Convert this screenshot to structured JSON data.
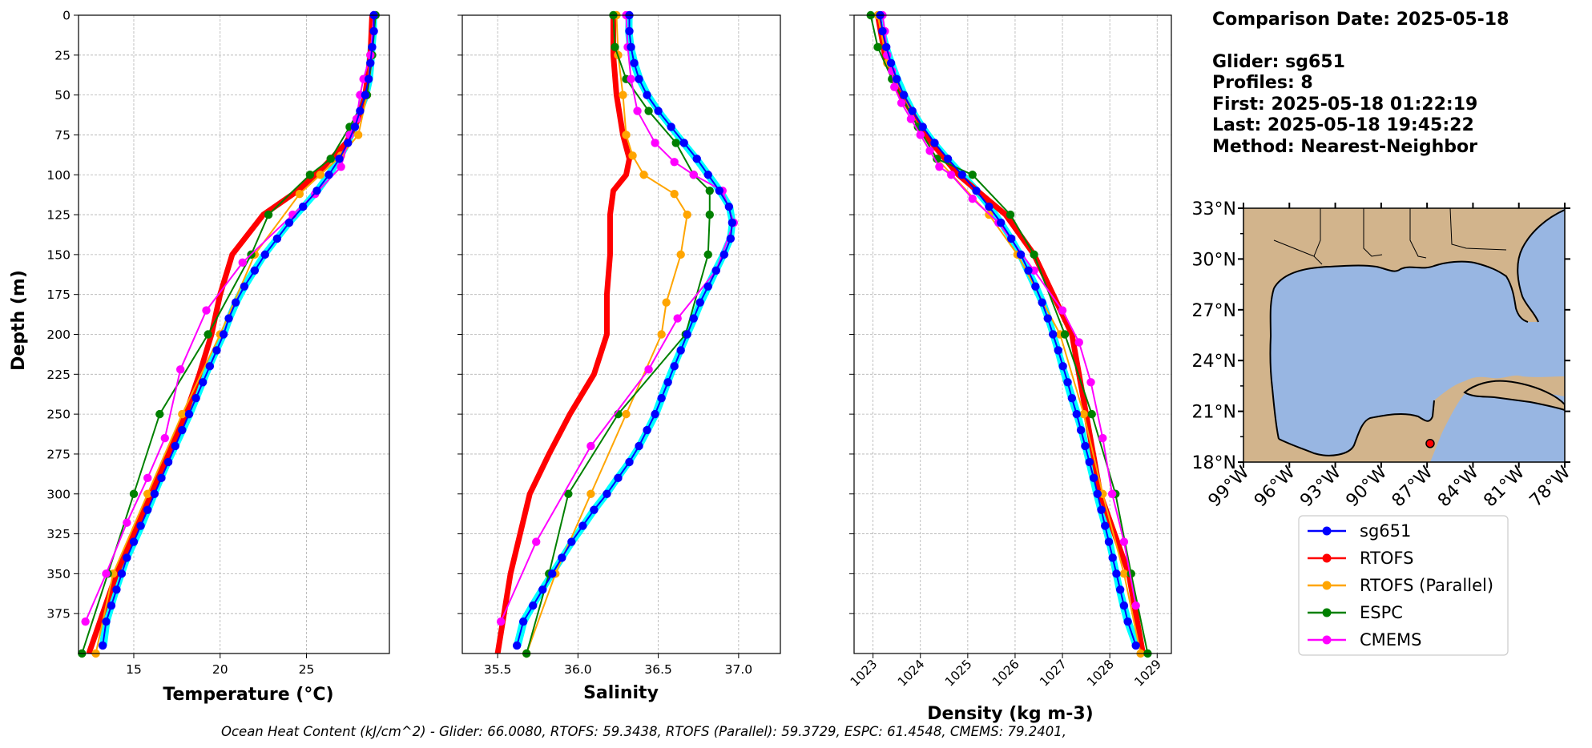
{
  "info": {
    "comparison_date": "Comparison Date: 2025-05-18",
    "glider": "Glider: sg651",
    "profiles": "Profiles: 8",
    "first": "First: 2025-05-18 01:22:19",
    "last": "Last: 2025-05-18 19:45:22",
    "method": "Method: Nearest-Neighbor"
  },
  "footer_text": "Ocean Heat Content (kJ/cm^2) - Glider: 66.0080,  RTOFS: 59.3438,  RTOFS (Parallel): 59.3729,  ESPC: 61.4548,  CMEMS: 79.2401,",
  "colors": {
    "sg651": "#0000ff",
    "sg651_profiles": "#00ffff",
    "RTOFS": "#ff0000",
    "RTOFS (Parallel)": "#ffa500",
    "ESPC": "#008000",
    "CMEMS": "#ff00ff",
    "land": "#d2b48c",
    "ocean": "#98b6e2"
  },
  "chart_data": [
    {
      "type": "line",
      "xlabel": "Temperature (°C)",
      "ylabel": "Depth (m)",
      "xlim": [
        11.8,
        29.8
      ],
      "ylim": [
        400,
        0
      ],
      "xticks": [
        15,
        20,
        25
      ],
      "yticks": [
        0,
        25,
        50,
        75,
        100,
        125,
        150,
        175,
        200,
        225,
        250,
        275,
        300,
        325,
        350,
        375
      ],
      "grid": true,
      "series": [
        {
          "name": "sg651",
          "marker": true,
          "x": [
            28.9,
            28.9,
            28.8,
            28.7,
            28.6,
            28.4,
            28.1,
            27.8,
            27.4,
            26.9,
            26.3,
            25.6,
            24.8,
            24.0,
            23.3,
            22.6,
            22.0,
            21.4,
            20.9,
            20.5,
            20.2,
            19.8,
            19.4,
            19.0,
            18.6,
            18.2,
            17.8,
            17.4,
            17.0,
            16.6,
            16.2,
            15.8,
            15.4,
            15.0,
            14.6,
            14.3,
            14.0,
            13.7,
            13.4,
            13.2
          ],
          "depth": [
            0,
            10,
            20,
            30,
            40,
            50,
            60,
            70,
            80,
            90,
            100,
            110,
            120,
            130,
            140,
            150,
            160,
            170,
            180,
            190,
            200,
            210,
            220,
            230,
            240,
            250,
            260,
            270,
            280,
            290,
            300,
            310,
            320,
            330,
            340,
            350,
            360,
            370,
            380,
            395
          ]
        },
        {
          "name": "RTOFS",
          "marker": false,
          "x": [
            28.8,
            28.7,
            28.4,
            28.0,
            27.3,
            26.0,
            24.5,
            22.5,
            20.7,
            20.0,
            19.5,
            18.8,
            18.0,
            17.0,
            16.0,
            15.0,
            14.0,
            13.2,
            12.4
          ],
          "depth": [
            0,
            25,
            50,
            65,
            80,
            95,
            110,
            125,
            150,
            175,
            200,
            225,
            250,
            275,
            300,
            325,
            350,
            375,
            400
          ]
        },
        {
          "name": "RTOFS (Parallel)",
          "marker": true,
          "x": [
            28.9,
            28.7,
            28.5,
            28.0,
            27.0,
            25.8,
            24.6,
            22.0,
            20.0,
            17.8,
            15.8,
            13.8,
            12.8
          ],
          "depth": [
            0,
            25,
            50,
            75,
            88,
            100,
            112,
            150,
            200,
            250,
            300,
            350,
            400
          ]
        },
        {
          "name": "ESPC",
          "marker": true,
          "x": [
            29.0,
            28.8,
            28.5,
            27.5,
            26.4,
            25.2,
            22.8,
            21.8,
            19.3,
            16.5,
            15.0,
            13.5,
            12.0
          ],
          "depth": [
            0,
            25,
            50,
            70,
            90,
            100,
            125,
            150,
            200,
            250,
            300,
            350,
            400
          ]
        },
        {
          "name": "CMEMS",
          "marker": true,
          "x": [
            28.9,
            28.7,
            28.3,
            28.1,
            27.9,
            27.5,
            27.0,
            25.5,
            24.2,
            21.3,
            19.2,
            17.7,
            16.8,
            15.8,
            14.6,
            13.4,
            12.2
          ],
          "depth": [
            0,
            25,
            40,
            50,
            65,
            75,
            95,
            112,
            125,
            155,
            185,
            222,
            265,
            290,
            318,
            350,
            380
          ]
        }
      ]
    },
    {
      "type": "line",
      "xlabel": "Salinity",
      "xlim": [
        35.28,
        37.26
      ],
      "ylim": [
        400,
        0
      ],
      "xticks": [
        35.5,
        36.0,
        36.5,
        37.0
      ],
      "xtick_labels": [
        "35.5",
        "36.0",
        "36.5",
        "37.0"
      ],
      "grid": true,
      "series": [
        {
          "name": "sg651",
          "marker": true,
          "x": [
            36.32,
            36.32,
            36.33,
            36.35,
            36.38,
            36.43,
            36.5,
            36.58,
            36.66,
            36.74,
            36.81,
            36.88,
            36.94,
            36.96,
            36.95,
            36.91,
            36.86,
            36.81,
            36.76,
            36.72,
            36.68,
            36.64,
            36.6,
            36.56,
            36.52,
            36.48,
            36.43,
            36.38,
            36.32,
            36.25,
            36.18,
            36.1,
            36.03,
            35.96,
            35.9,
            35.84,
            35.78,
            35.72,
            35.66,
            35.62
          ],
          "depth": [
            0,
            10,
            20,
            30,
            40,
            50,
            60,
            70,
            80,
            90,
            100,
            110,
            120,
            130,
            140,
            150,
            160,
            170,
            180,
            190,
            200,
            210,
            220,
            230,
            240,
            250,
            260,
            270,
            280,
            290,
            300,
            310,
            320,
            330,
            340,
            350,
            360,
            370,
            380,
            395
          ]
        },
        {
          "name": "RTOFS",
          "marker": false,
          "x": [
            36.22,
            36.22,
            36.24,
            36.28,
            36.32,
            36.3,
            36.22,
            36.2,
            36.2,
            36.18,
            36.18,
            36.1,
            35.95,
            35.82,
            35.7,
            35.58,
            35.5
          ],
          "depth": [
            0,
            25,
            50,
            75,
            90,
            100,
            110,
            125,
            150,
            175,
            200,
            225,
            250,
            275,
            300,
            350,
            400
          ]
        },
        {
          "name": "RTOFS (Parallel)",
          "marker": true,
          "x": [
            36.24,
            36.25,
            36.28,
            36.3,
            36.34,
            36.41,
            36.6,
            36.68,
            36.64,
            36.55,
            36.52,
            36.3,
            36.08,
            35.86,
            35.68
          ],
          "depth": [
            0,
            25,
            50,
            75,
            88,
            100,
            112,
            125,
            150,
            180,
            200,
            250,
            300,
            350,
            400
          ]
        },
        {
          "name": "ESPC",
          "marker": true,
          "x": [
            36.22,
            36.23,
            36.3,
            36.44,
            36.61,
            36.72,
            36.82,
            36.82,
            36.81,
            36.67,
            36.25,
            35.94,
            35.82,
            35.68
          ],
          "depth": [
            0,
            20,
            40,
            60,
            80,
            100,
            110,
            125,
            150,
            200,
            250,
            300,
            350,
            400
          ]
        },
        {
          "name": "CMEMS",
          "marker": true,
          "x": [
            36.3,
            36.31,
            36.33,
            36.37,
            36.48,
            36.6,
            36.72,
            36.9,
            36.97,
            36.86,
            36.62,
            36.44,
            36.08,
            35.74,
            35.52
          ],
          "depth": [
            0,
            20,
            40,
            60,
            80,
            92,
            100,
            110,
            130,
            160,
            190,
            222,
            270,
            330,
            380
          ]
        }
      ]
    },
    {
      "type": "line",
      "xlabel": "Density (kg m-3)",
      "xlim": [
        1022.6,
        1029.3
      ],
      "ylim": [
        400,
        0
      ],
      "xticks": [
        1023,
        1024,
        1025,
        1026,
        1027,
        1028,
        1029
      ],
      "grid": true,
      "series": [
        {
          "name": "sg651",
          "marker": true,
          "x": [
            1023.15,
            1023.2,
            1023.28,
            1023.38,
            1023.5,
            1023.65,
            1023.83,
            1024.05,
            1024.3,
            1024.58,
            1024.88,
            1025.18,
            1025.45,
            1025.7,
            1025.92,
            1026.12,
            1026.28,
            1026.43,
            1026.57,
            1026.69,
            1026.8,
            1026.91,
            1027.01,
            1027.11,
            1027.2,
            1027.3,
            1027.39,
            1027.48,
            1027.57,
            1027.66,
            1027.74,
            1027.82,
            1027.9,
            1027.98,
            1028.06,
            1028.14,
            1028.22,
            1028.3,
            1028.38,
            1028.55
          ],
          "depth": [
            0,
            10,
            20,
            30,
            40,
            50,
            60,
            70,
            80,
            90,
            100,
            110,
            120,
            130,
            140,
            150,
            160,
            170,
            180,
            190,
            200,
            210,
            220,
            230,
            240,
            250,
            260,
            270,
            280,
            290,
            300,
            310,
            320,
            330,
            340,
            350,
            360,
            370,
            380,
            395
          ]
        },
        {
          "name": "RTOFS",
          "marker": false,
          "x": [
            1023.1,
            1023.25,
            1023.6,
            1024.1,
            1024.8,
            1025.8,
            1026.4,
            1026.8,
            1027.2,
            1027.5,
            1027.8,
            1028.1,
            1028.4,
            1028.7
          ],
          "depth": [
            0,
            25,
            50,
            75,
            100,
            125,
            150,
            175,
            200,
            250,
            300,
            325,
            350,
            400
          ]
        },
        {
          "name": "RTOFS (Parallel)",
          "marker": true,
          "x": [
            1023.1,
            1023.3,
            1023.65,
            1023.95,
            1024.35,
            1025.45,
            1026.05,
            1026.95,
            1027.45,
            1027.85,
            1028.3,
            1028.65
          ],
          "depth": [
            0,
            30,
            50,
            70,
            90,
            125,
            150,
            200,
            250,
            300,
            350,
            400
          ]
        },
        {
          "name": "ESPC",
          "marker": true,
          "x": [
            1022.95,
            1023.1,
            1023.4,
            1023.95,
            1024.35,
            1025.1,
            1025.9,
            1026.4,
            1027.05,
            1027.62,
            1028.12,
            1028.45,
            1028.8
          ],
          "depth": [
            0,
            20,
            40,
            70,
            90,
            100,
            125,
            150,
            200,
            250,
            300,
            350,
            400
          ]
        },
        {
          "name": "CMEMS",
          "marker": true,
          "x": [
            1023.2,
            1023.25,
            1023.3,
            1023.4,
            1023.45,
            1023.6,
            1023.8,
            1024.0,
            1024.2,
            1024.4,
            1024.65,
            1025.1,
            1025.65,
            1026.4,
            1027.0,
            1027.35,
            1027.6,
            1027.85,
            1028.05,
            1028.3,
            1028.55
          ],
          "depth": [
            0,
            10,
            25,
            35,
            45,
            55,
            65,
            75,
            85,
            95,
            100,
            115,
            130,
            160,
            185,
            205,
            230,
            265,
            300,
            330,
            370
          ]
        }
      ]
    }
  ],
  "map": {
    "lat_ticks": [
      "33°N",
      "30°N",
      "27°N",
      "24°N",
      "21°N",
      "18°N"
    ],
    "lon_ticks": [
      "99°W",
      "96°W",
      "93°W",
      "90°W",
      "87°W",
      "84°W",
      "81°W",
      "78°W"
    ],
    "extent": {
      "lon": [
        -99,
        -78
      ],
      "lat": [
        18,
        33
      ]
    },
    "glider_position": {
      "lon": -86.8,
      "lat": 19.1
    }
  },
  "legend": {
    "entries": [
      "sg651",
      "RTOFS",
      "RTOFS (Parallel)",
      "ESPC",
      "CMEMS"
    ]
  }
}
